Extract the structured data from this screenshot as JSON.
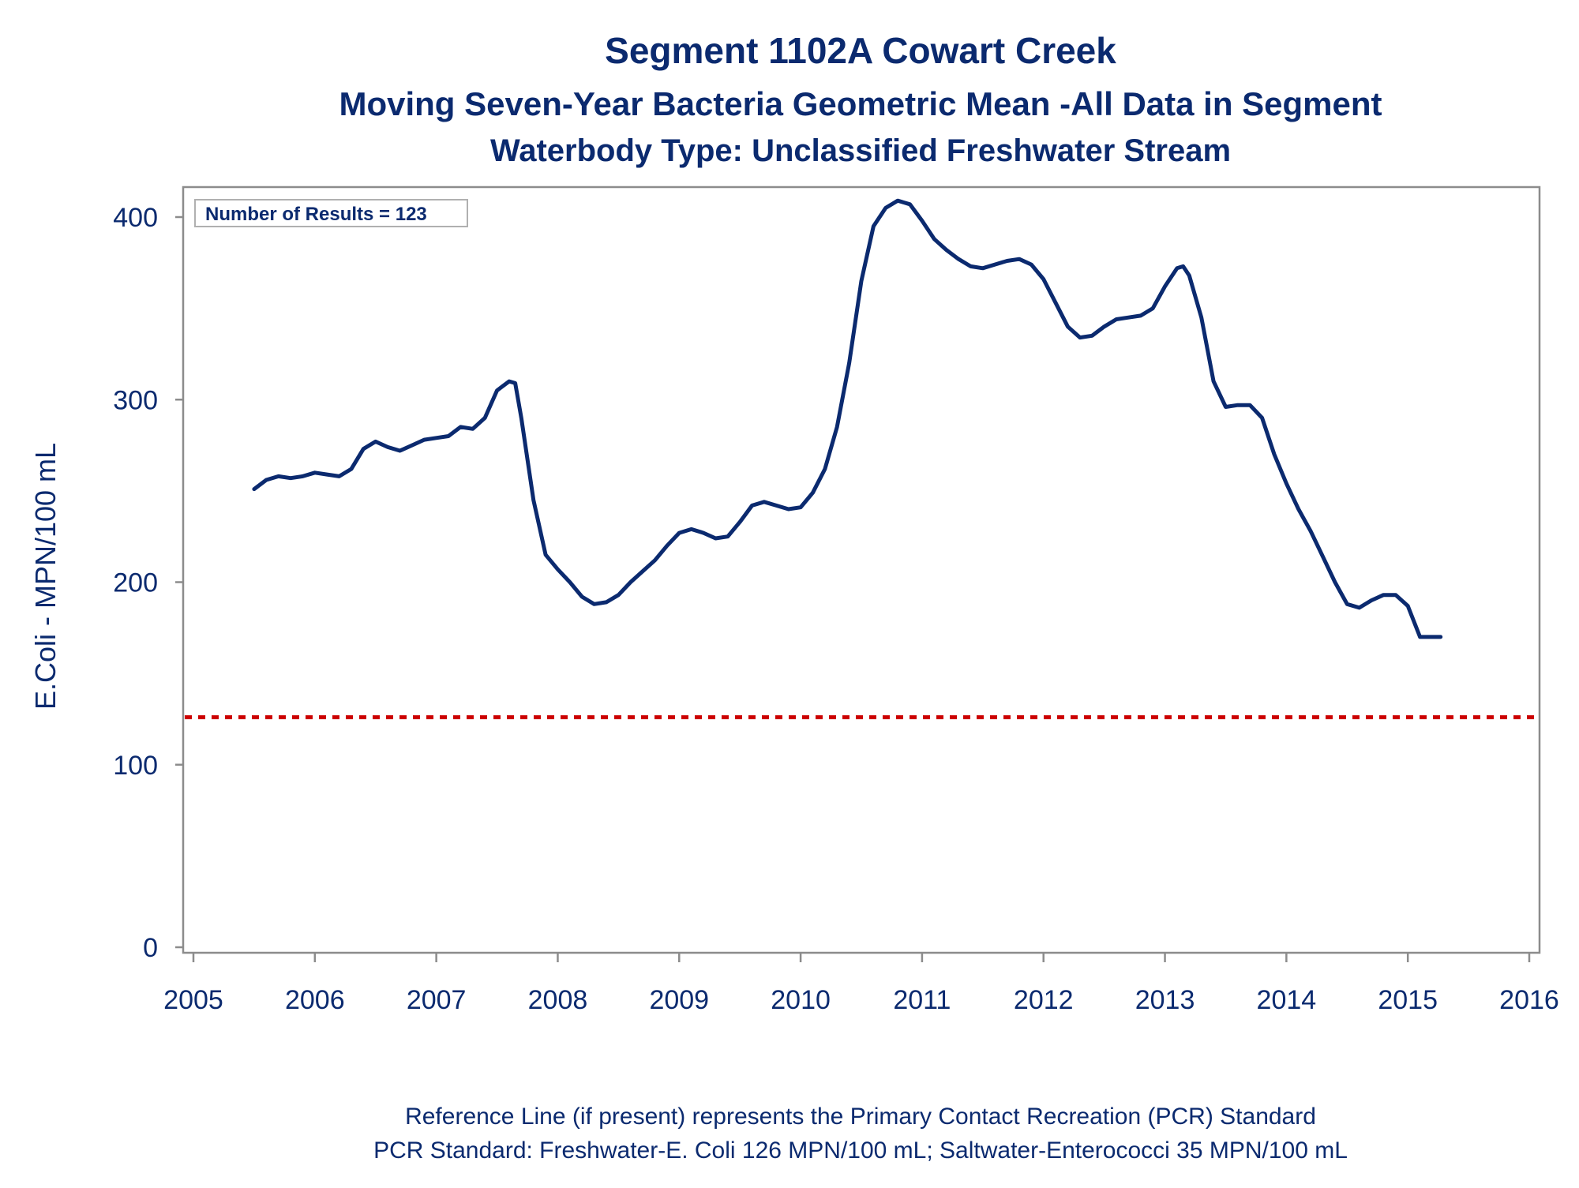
{
  "titles": {
    "line1": "Segment 1102A   Cowart Creek",
    "line2": "Moving Seven-Year Bacteria Geometric Mean -All Data in Segment",
    "line3": "Waterbody Type: Unclassified Freshwater Stream"
  },
  "footnotes": {
    "line1": "Reference Line (if present) represents the Primary Contact Recreation (PCR) Standard",
    "line2": "PCR Standard: Freshwater-E. Coli 126 MPN/100 mL; Saltwater-Enterococci 35 MPN/100 mL"
  },
  "colors": {
    "text": "#0b2a6f",
    "series_line": "#0b2a6f",
    "reference_line": "#cc0000",
    "frame": "#8c8c8c"
  },
  "chart_data": {
    "type": "line",
    "title": "Segment 1102A   Cowart Creek",
    "subtitle": "Moving Seven-Year Bacteria Geometric Mean -All Data in Segment",
    "ylabel": "E.Coli - MPN/100 mL",
    "xlabel": "",
    "xlim": [
      2005,
      2016
    ],
    "ylim": [
      0,
      410
    ],
    "x_ticks": [
      2005,
      2006,
      2007,
      2008,
      2009,
      2010,
      2011,
      2012,
      2013,
      2014,
      2015,
      2016
    ],
    "y_ticks": [
      0,
      100,
      200,
      300,
      400
    ],
    "grid": false,
    "annotation": "Number of Results = 123",
    "annotation_position": "top-left",
    "reference_line": {
      "y": 126,
      "style": "dashed"
    },
    "series": [
      {
        "x": [
          2005.5,
          2005.6,
          2005.7,
          2005.8,
          2005.9,
          2006.0,
          2006.1,
          2006.2,
          2006.3,
          2006.4,
          2006.5,
          2006.6,
          2006.7,
          2006.8,
          2006.9,
          2007.0,
          2007.1,
          2007.2,
          2007.3,
          2007.4,
          2007.5,
          2007.6,
          2007.65,
          2007.7,
          2007.8,
          2007.9,
          2008.0,
          2008.1,
          2008.2,
          2008.3,
          2008.4,
          2008.5,
          2008.6,
          2008.7,
          2008.8,
          2008.9,
          2009.0,
          2009.1,
          2009.2,
          2009.3,
          2009.4,
          2009.5,
          2009.6,
          2009.7,
          2009.8,
          2009.9,
          2010.0,
          2010.1,
          2010.2,
          2010.3,
          2010.4,
          2010.5,
          2010.6,
          2010.7,
          2010.8,
          2010.85,
          2010.9,
          2011.0,
          2011.1,
          2011.2,
          2011.3,
          2011.4,
          2011.5,
          2011.6,
          2011.7,
          2011.8,
          2011.9,
          2012.0,
          2012.1,
          2012.2,
          2012.3,
          2012.4,
          2012.5,
          2012.6,
          2012.7,
          2012.8,
          2012.9,
          2013.0,
          2013.1,
          2013.15,
          2013.2,
          2013.3,
          2013.4,
          2013.5,
          2013.6,
          2013.7,
          2013.8,
          2013.9,
          2014.0,
          2014.1,
          2014.2,
          2014.3,
          2014.4,
          2014.5,
          2014.6,
          2014.7,
          2014.8,
          2014.9,
          2015.0,
          2015.1,
          2015.2,
          2015.27
        ],
        "values": [
          251,
          256,
          258,
          257,
          258,
          260,
          259,
          258,
          262,
          273,
          277,
          274,
          272,
          275,
          278,
          279,
          280,
          285,
          284,
          290,
          305,
          310,
          309,
          290,
          245,
          215,
          207,
          200,
          192,
          188,
          189,
          193,
          200,
          206,
          212,
          220,
          227,
          229,
          227,
          224,
          225,
          233,
          242,
          244,
          242,
          240,
          241,
          249,
          262,
          285,
          320,
          365,
          395,
          405,
          409,
          408,
          407,
          398,
          388,
          382,
          377,
          373,
          372,
          374,
          376,
          377,
          374,
          366,
          353,
          340,
          334,
          335,
          340,
          344,
          345,
          346,
          350,
          362,
          372,
          373,
          368,
          345,
          310,
          296,
          297,
          297,
          290,
          270,
          254,
          240,
          228,
          214,
          200,
          188,
          186,
          190,
          193,
          193,
          187,
          170,
          170,
          170
        ]
      }
    ]
  }
}
